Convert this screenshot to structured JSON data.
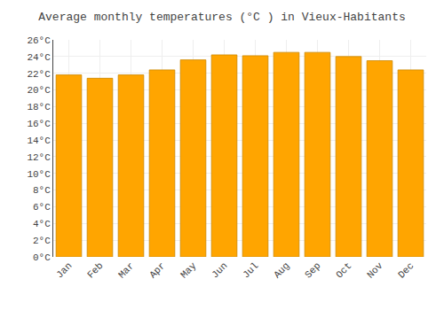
{
  "chart_data": {
    "type": "bar",
    "title": "Average monthly temperatures (°C ) in Vieux-Habitants",
    "categories": [
      "Jan",
      "Feb",
      "Mar",
      "Apr",
      "May",
      "Jun",
      "Jul",
      "Aug",
      "Sep",
      "Oct",
      "Nov",
      "Dec"
    ],
    "values": [
      21.8,
      21.4,
      21.8,
      22.4,
      23.6,
      24.2,
      24.1,
      24.5,
      24.5,
      24.0,
      23.5,
      22.4
    ],
    "color": "#FFA500",
    "ylim": [
      0,
      26
    ],
    "yticks": [
      {
        "value": 0,
        "label": "0°C"
      },
      {
        "value": 2,
        "label": "2°C"
      },
      {
        "value": 4,
        "label": "4°C"
      },
      {
        "value": 6,
        "label": "6°C"
      },
      {
        "value": 8,
        "label": "8°C"
      },
      {
        "value": 10,
        "label": "10°C"
      },
      {
        "value": 12,
        "label": "12°C"
      },
      {
        "value": 14,
        "label": "14°C"
      },
      {
        "value": 16,
        "label": "16°C"
      },
      {
        "value": 18,
        "label": "18°C"
      },
      {
        "value": 20,
        "label": "20°C"
      },
      {
        "value": 22,
        "label": "22°C"
      },
      {
        "value": 24,
        "label": "24°C"
      },
      {
        "value": 26,
        "label": "26°C"
      }
    ],
    "grid": true
  }
}
